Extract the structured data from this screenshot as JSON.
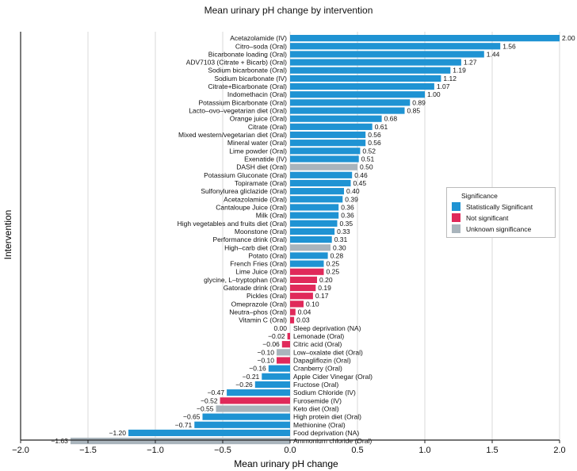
{
  "chart_data": {
    "type": "bar",
    "orientation": "horizontal",
    "title": "Mean urinary pH change by intervention",
    "xlabel": "Mean urinary pH change",
    "ylabel": "Intervention",
    "xlim": [
      -2.0,
      2.0
    ],
    "xticks": [
      "−2.0",
      "−1.5",
      "−1.0",
      "−0.5",
      "0.0",
      "0.5",
      "1.0",
      "1.5",
      "2.0"
    ],
    "xtick_values": [
      -2.0,
      -1.5,
      -1.0,
      -0.5,
      0.0,
      0.5,
      1.0,
      1.5,
      2.0
    ],
    "grid": "vertical",
    "legend": {
      "title": "Significance",
      "placement": "right",
      "items": [
        {
          "label": "Statistically Significant",
          "color": "#1f93d3"
        },
        {
          "label": "Not significant",
          "color": "#e0295a"
        },
        {
          "label": "Unknown significance",
          "color": "#a9b4bc"
        }
      ]
    },
    "bars": [
      {
        "label": "Acetazolamide (IV)",
        "value": 2.0,
        "value_label": "2.00",
        "significance": "Statistically Significant"
      },
      {
        "label": "Citro–soda (Oral)",
        "value": 1.56,
        "value_label": "1.56",
        "significance": "Statistically Significant"
      },
      {
        "label": "Bicarbonate loading (Oral)",
        "value": 1.44,
        "value_label": "1.44",
        "significance": "Statistically Significant"
      },
      {
        "label": "ADV7103 (Citrate + Bicarb) (Oral)",
        "value": 1.27,
        "value_label": "1.27",
        "significance": "Statistically Significant"
      },
      {
        "label": "Sodium bicarbonate (Oral)",
        "value": 1.19,
        "value_label": "1.19",
        "significance": "Statistically Significant"
      },
      {
        "label": "Sodium bicarbonate (IV)",
        "value": 1.12,
        "value_label": "1.12",
        "significance": "Statistically Significant"
      },
      {
        "label": "Citrate+Bicarbonate (Oral)",
        "value": 1.07,
        "value_label": "1.07",
        "significance": "Statistically Significant"
      },
      {
        "label": "Indomethacin (Oral)",
        "value": 1.0,
        "value_label": "1.00",
        "significance": "Statistically Significant"
      },
      {
        "label": "Potassium Bicarbonate (Oral)",
        "value": 0.89,
        "value_label": "0.89",
        "significance": "Statistically Significant"
      },
      {
        "label": "Lacto–ovo–vegetarian diet (Oral)",
        "value": 0.85,
        "value_label": "0.85",
        "significance": "Statistically Significant"
      },
      {
        "label": "Orange juice (Oral)",
        "value": 0.68,
        "value_label": "0.68",
        "significance": "Statistically Significant"
      },
      {
        "label": "Citrate (Oral)",
        "value": 0.61,
        "value_label": "0.61",
        "significance": "Statistically Significant"
      },
      {
        "label": "Mixed western/vegetarian diet (Oral)",
        "value": 0.56,
        "value_label": "0.56",
        "significance": "Statistically Significant"
      },
      {
        "label": "Mineral water (Oral)",
        "value": 0.56,
        "value_label": "0.56",
        "significance": "Statistically Significant"
      },
      {
        "label": "Lime powder (Oral)",
        "value": 0.52,
        "value_label": "0.52",
        "significance": "Statistically Significant"
      },
      {
        "label": "Exenatide (IV)",
        "value": 0.51,
        "value_label": "0.51",
        "significance": "Statistically Significant"
      },
      {
        "label": "DASH diet (Oral)",
        "value": 0.5,
        "value_label": "0.50",
        "significance": "Unknown significance"
      },
      {
        "label": "Potassium Gluconate (Oral)",
        "value": 0.46,
        "value_label": "0.46",
        "significance": "Statistically Significant"
      },
      {
        "label": "Topiramate (Oral)",
        "value": 0.45,
        "value_label": "0.45",
        "significance": "Statistically Significant"
      },
      {
        "label": "Sulfonylurea gliclazide (Oral)",
        "value": 0.4,
        "value_label": "0.40",
        "significance": "Statistically Significant"
      },
      {
        "label": "Acetazolamide (Oral)",
        "value": 0.39,
        "value_label": "0.39",
        "significance": "Statistically Significant"
      },
      {
        "label": "Cantaloupe Juice (Oral)",
        "value": 0.36,
        "value_label": "0.36",
        "significance": "Statistically Significant"
      },
      {
        "label": "Milk (Oral)",
        "value": 0.36,
        "value_label": "0.36",
        "significance": "Statistically Significant"
      },
      {
        "label": "High vegetables and fruits diet (Oral)",
        "value": 0.35,
        "value_label": "0.35",
        "significance": "Statistically Significant"
      },
      {
        "label": "Moonstone (Oral)",
        "value": 0.33,
        "value_label": "0.33",
        "significance": "Statistically Significant"
      },
      {
        "label": "Performance drink (Oral)",
        "value": 0.31,
        "value_label": "0.31",
        "significance": "Statistically Significant"
      },
      {
        "label": "High–carb diet (Oral)",
        "value": 0.3,
        "value_label": "0.30",
        "significance": "Unknown significance"
      },
      {
        "label": "Potato (Oral)",
        "value": 0.28,
        "value_label": "0.28",
        "significance": "Statistically Significant"
      },
      {
        "label": "French Fries (Oral)",
        "value": 0.25,
        "value_label": "0.25",
        "significance": "Statistically Significant"
      },
      {
        "label": "Lime Juice (Oral)",
        "value": 0.25,
        "value_label": "0.25",
        "significance": "Not significant"
      },
      {
        "label": "glycine, L–tryptophan (Oral)",
        "value": 0.2,
        "value_label": "0.20",
        "significance": "Not significant"
      },
      {
        "label": "Gatorade drink (Oral)",
        "value": 0.19,
        "value_label": "0.19",
        "significance": "Not significant"
      },
      {
        "label": "Pickles (Oral)",
        "value": 0.17,
        "value_label": "0.17",
        "significance": "Not significant"
      },
      {
        "label": "Omeprazole (Oral)",
        "value": 0.1,
        "value_label": "0.10",
        "significance": "Not significant"
      },
      {
        "label": "Neutra–phos (Oral)",
        "value": 0.04,
        "value_label": "0.04",
        "significance": "Not significant"
      },
      {
        "label": "Vitamin C (Oral)",
        "value": 0.03,
        "value_label": "0.03",
        "significance": "Not significant"
      },
      {
        "label": "Sleep deprivation (NA)",
        "value": 0.0,
        "value_label": "0.00",
        "significance": "Unknown significance"
      },
      {
        "label": "Lemonade (Oral)",
        "value": -0.02,
        "value_label": "−0.02",
        "significance": "Not significant"
      },
      {
        "label": "Citric acid (Oral)",
        "value": -0.06,
        "value_label": "−0.06",
        "significance": "Not significant"
      },
      {
        "label": "Low–oxalate diet (Oral)",
        "value": -0.1,
        "value_label": "−0.10",
        "significance": "Unknown significance"
      },
      {
        "label": "Dapagliflozin (Oral)",
        "value": -0.1,
        "value_label": "−0.10",
        "significance": "Not significant"
      },
      {
        "label": "Cranberry (Oral)",
        "value": -0.16,
        "value_label": "−0.16",
        "significance": "Statistically Significant"
      },
      {
        "label": "Apple Cider Vinegar (Oral)",
        "value": -0.21,
        "value_label": "−0.21",
        "significance": "Statistically Significant"
      },
      {
        "label": "Fructose (Oral)",
        "value": -0.26,
        "value_label": "−0.26",
        "significance": "Statistically Significant"
      },
      {
        "label": "Sodium Chloride (IV)",
        "value": -0.47,
        "value_label": "−0.47",
        "significance": "Statistically Significant"
      },
      {
        "label": "Furosemide (IV)",
        "value": -0.52,
        "value_label": "−0.52",
        "significance": "Not significant"
      },
      {
        "label": "Keto diet (Oral)",
        "value": -0.55,
        "value_label": "−0.55",
        "significance": "Unknown significance"
      },
      {
        "label": "High protein diet (Oral)",
        "value": -0.65,
        "value_label": "−0.65",
        "significance": "Statistically Significant"
      },
      {
        "label": "Methionine (Oral)",
        "value": -0.71,
        "value_label": "−0.71",
        "significance": "Statistically Significant"
      },
      {
        "label": "Food deprivation (NA)",
        "value": -1.2,
        "value_label": "−1.20",
        "significance": "Statistically Significant"
      },
      {
        "label": "Ammonium chloride (Oral)",
        "value": -1.63,
        "value_label": "−1.63",
        "significance": "Unknown significance"
      }
    ]
  }
}
